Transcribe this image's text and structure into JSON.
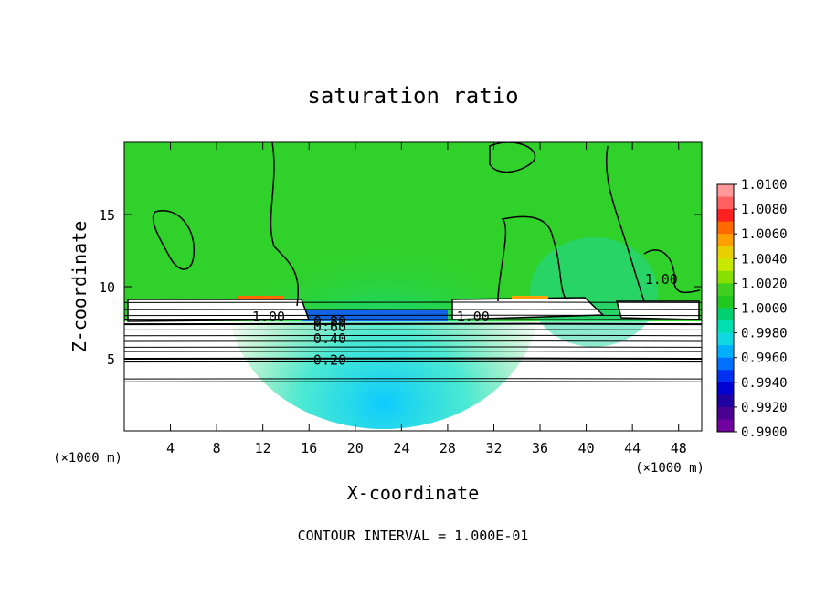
{
  "chart_data": {
    "type": "heatmap",
    "title": "saturation ratio",
    "xlabel": "X-coordinate",
    "ylabel": "Z-coordinate",
    "x_unit_note": "(×1000 m)",
    "y_unit_note": "(×1000 m)",
    "footer": "CONTOUR INTERVAL = 1.000E-01",
    "xlim": [
      0,
      50
    ],
    "ylim": [
      0,
      20
    ],
    "x_ticks": [
      4,
      8,
      12,
      16,
      20,
      24,
      28,
      32,
      36,
      40,
      44,
      48
    ],
    "y_ticks": [
      5,
      10,
      15
    ],
    "colorbar": {
      "min": 0.99,
      "max": 1.01,
      "step": 0.001,
      "labels": [
        "1.0100",
        "1.0080",
        "1.0060",
        "1.0040",
        "1.0020",
        "1.0000",
        "0.9980",
        "0.9960",
        "0.9940",
        "0.9920",
        "0.9900"
      ],
      "colors": [
        "#ff9999",
        "#ff6060",
        "#ff2020",
        "#ff6a00",
        "#ffa000",
        "#e8d000",
        "#c8e800",
        "#88e000",
        "#40d020",
        "#20c820",
        "#00d070",
        "#00e0b0",
        "#10d8e0",
        "#00b0ff",
        "#0070ff",
        "#0030f0",
        "#0000d0",
        "#2000a0",
        "#4a0090",
        "#7000a0"
      ]
    },
    "contours": [
      {
        "label": "1.00",
        "x": 12.5,
        "z": 7.9
      },
      {
        "label": "0.80",
        "x": 17.8,
        "z": 7.6
      },
      {
        "label": "0.60",
        "x": 17.8,
        "z": 7.2
      },
      {
        "label": "0.40",
        "x": 17.8,
        "z": 6.4
      },
      {
        "label": "0.20",
        "x": 17.8,
        "z": 4.9
      },
      {
        "label": "1.00",
        "x": 30.2,
        "z": 7.9
      },
      {
        "label": "1.00",
        "x": 46.5,
        "z": 10.5
      }
    ],
    "contour_levels_z": [
      8.9,
      8.4,
      8.0,
      7.7,
      7.4,
      7.0,
      6.6,
      6.2,
      5.8,
      5.5,
      5.0,
      4.8,
      3.6,
      3.4
    ]
  }
}
